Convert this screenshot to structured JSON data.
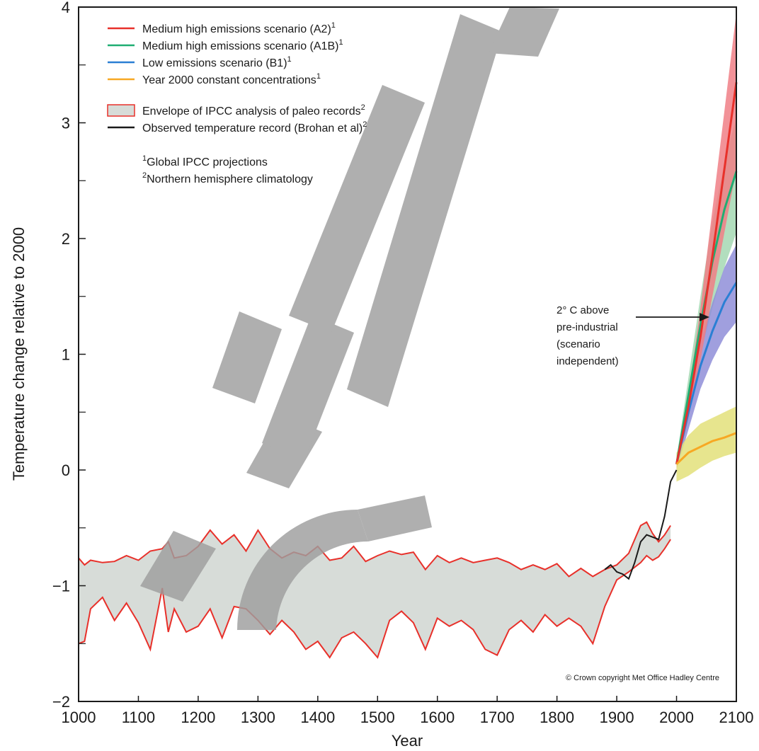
{
  "chart_data": {
    "type": "line",
    "title": "",
    "xlabel": "Year",
    "ylabel": "Temperature change relative to 2000",
    "xlim": [
      1000,
      2100
    ],
    "ylim": [
      -2,
      4
    ],
    "xticks": [
      "1000",
      "1100",
      "1200",
      "1300",
      "1400",
      "1500",
      "1600",
      "1700",
      "1800",
      "1900",
      "2000",
      "2100"
    ],
    "yticks": [
      "−2",
      "−1",
      "0",
      "1",
      "2",
      "3",
      "4"
    ],
    "grid": false,
    "legend": {
      "placement": "top-left",
      "entries": [
        {
          "label": "Medium high emissions scenario (A2)",
          "sup": "1",
          "color": "#e8302a",
          "kind": "line"
        },
        {
          "label": "Medium high emissions scenario (A1B)",
          "sup": "1",
          "color": "#1fae72",
          "kind": "line"
        },
        {
          "label": "Low emissions scenario (B1)",
          "sup": "1",
          "color": "#2a7fd4",
          "kind": "line"
        },
        {
          "label": "Year 2000 constant concentrations",
          "sup": "1",
          "color": "#f7a823",
          "kind": "line"
        },
        {
          "label": "Envelope of IPCC analysis of paleo records",
          "sup": "2",
          "color": "#e8302a",
          "fill": "#d7dcd8",
          "kind": "box"
        },
        {
          "label": "Observed temperature record (Brohan et al)",
          "sup": "2",
          "color": "#1a1a1a",
          "kind": "line"
        }
      ],
      "notes": [
        {
          "sup": "1",
          "label": "Global IPCC projections"
        },
        {
          "sup": "2",
          "label": "Northern hemisphere climatology"
        }
      ]
    },
    "annotation": {
      "lines": [
        "2° C above",
        "pre-industrial",
        "(scenario",
        "independent)"
      ],
      "arrow_target": [
        2055,
        1.3
      ]
    },
    "copyright": "© Crown copyright Met Office Hadley Centre",
    "paleo_envelope": {
      "color": "#e8302a",
      "fill": "#d7dcd8",
      "x": [
        1000,
        1010,
        1020,
        1040,
        1060,
        1080,
        1100,
        1120,
        1140,
        1150,
        1160,
        1180,
        1200,
        1220,
        1240,
        1260,
        1280,
        1300,
        1320,
        1340,
        1360,
        1380,
        1400,
        1420,
        1440,
        1460,
        1480,
        1500,
        1520,
        1540,
        1560,
        1580,
        1600,
        1620,
        1640,
        1660,
        1680,
        1700,
        1720,
        1740,
        1760,
        1780,
        1800,
        1820,
        1840,
        1860,
        1880,
        1900,
        1920,
        1940,
        1950,
        1960,
        1970,
        1980,
        1990
      ],
      "upper": [
        -0.76,
        -0.82,
        -0.78,
        -0.8,
        -0.79,
        -0.74,
        -0.78,
        -0.7,
        -0.68,
        -0.62,
        -0.76,
        -0.74,
        -0.66,
        -0.52,
        -0.64,
        -0.56,
        -0.7,
        -0.52,
        -0.68,
        -0.76,
        -0.71,
        -0.74,
        -0.66,
        -0.78,
        -0.76,
        -0.66,
        -0.79,
        -0.74,
        -0.7,
        -0.73,
        -0.71,
        -0.86,
        -0.74,
        -0.8,
        -0.76,
        -0.8,
        -0.78,
        -0.76,
        -0.8,
        -0.86,
        -0.82,
        -0.86,
        -0.81,
        -0.92,
        -0.85,
        -0.92,
        -0.86,
        -0.82,
        -0.72,
        -0.48,
        -0.45,
        -0.55,
        -0.62,
        -0.56,
        -0.48
      ],
      "lower": [
        -1.5,
        -1.48,
        -1.2,
        -1.1,
        -1.3,
        -1.15,
        -1.32,
        -1.55,
        -1.02,
        -1.4,
        -1.2,
        -1.4,
        -1.35,
        -1.2,
        -1.45,
        -1.18,
        -1.2,
        -1.3,
        -1.42,
        -1.3,
        -1.4,
        -1.55,
        -1.48,
        -1.62,
        -1.45,
        -1.4,
        -1.5,
        -1.62,
        -1.3,
        -1.22,
        -1.32,
        -1.55,
        -1.28,
        -1.35,
        -1.3,
        -1.38,
        -1.55,
        -1.6,
        -1.38,
        -1.3,
        -1.4,
        -1.25,
        -1.35,
        -1.28,
        -1.35,
        -1.5,
        -1.18,
        -0.95,
        -0.88,
        -0.8,
        -0.74,
        -0.78,
        -0.75,
        -0.68,
        -0.6
      ]
    },
    "observed": {
      "color": "#1a1a1a",
      "x": [
        1880,
        1890,
        1900,
        1910,
        1920,
        1930,
        1940,
        1950,
        1960,
        1970,
        1980,
        1990,
        2000
      ],
      "y": [
        -0.86,
        -0.82,
        -0.88,
        -0.9,
        -0.94,
        -0.8,
        -0.62,
        -0.56,
        -0.58,
        -0.6,
        -0.4,
        -0.1,
        0.0
      ]
    },
    "series": [
      {
        "name": "Medium high emissions scenario (A2)",
        "color": "#e8302a",
        "band": "#f07f86",
        "x": [
          2000,
          2020,
          2040,
          2060,
          2080,
          2100
        ],
        "y": [
          0.05,
          0.55,
          1.15,
          1.85,
          2.6,
          3.35
        ],
        "lo": [
          0.0,
          0.45,
          0.95,
          1.5,
          2.05,
          2.6
        ],
        "hi": [
          0.1,
          0.65,
          1.4,
          2.25,
          3.1,
          3.95
        ]
      },
      {
        "name": "Medium high emissions scenario (A1B)",
        "color": "#1fae72",
        "band": "#a5d8b3",
        "x": [
          2000,
          2020,
          2040,
          2060,
          2080,
          2100
        ],
        "y": [
          0.05,
          0.65,
          1.25,
          1.8,
          2.25,
          2.58
        ],
        "lo": [
          0.0,
          0.5,
          1.0,
          1.4,
          1.75,
          2.05
        ],
        "hi": [
          0.1,
          0.8,
          1.5,
          2.15,
          2.65,
          3.05
        ]
      },
      {
        "name": "Low emissions scenario (B1)",
        "color": "#2a7fd4",
        "band": "#8f8ed8",
        "x": [
          2000,
          2020,
          2040,
          2060,
          2080,
          2100
        ],
        "y": [
          0.05,
          0.5,
          0.9,
          1.2,
          1.45,
          1.62
        ],
        "lo": [
          0.0,
          0.35,
          0.7,
          0.95,
          1.15,
          1.28
        ],
        "hi": [
          0.1,
          0.62,
          1.1,
          1.45,
          1.75,
          1.95
        ]
      },
      {
        "name": "Year 2000 constant concentrations",
        "color": "#f7a823",
        "band": "#e3e07a",
        "x": [
          2000,
          2020,
          2040,
          2060,
          2080,
          2100
        ],
        "y": [
          0.05,
          0.15,
          0.2,
          0.25,
          0.28,
          0.32
        ],
        "lo": [
          -0.1,
          -0.05,
          0.02,
          0.08,
          0.12,
          0.15
        ],
        "hi": [
          0.15,
          0.3,
          0.4,
          0.45,
          0.5,
          0.55
        ]
      }
    ]
  }
}
